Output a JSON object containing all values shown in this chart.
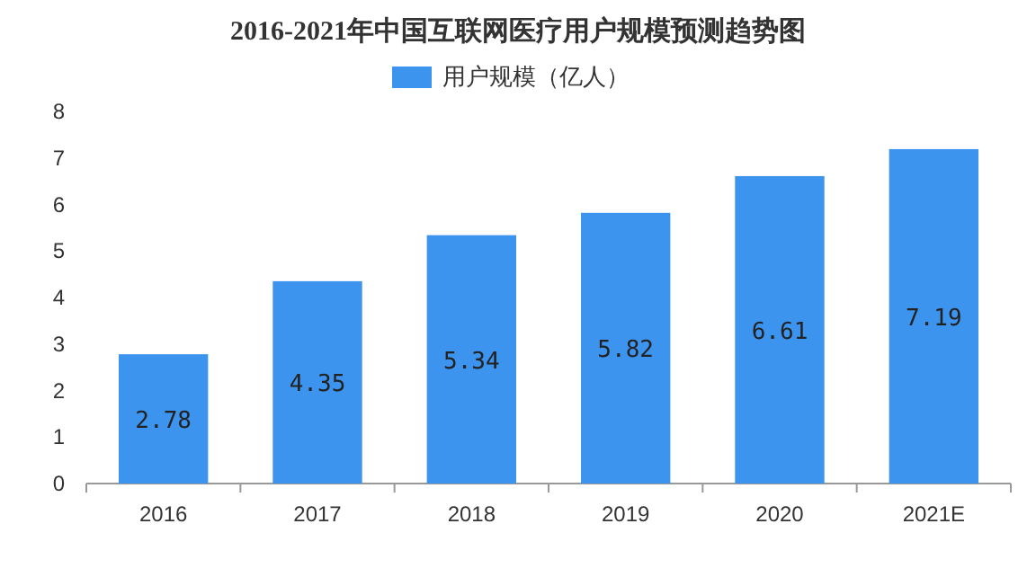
{
  "chart_data": {
    "type": "bar",
    "title": "2016-2021年中国互联网医疗用户规模预测趋势图",
    "categories": [
      "2016",
      "2017",
      "2018",
      "2019",
      "2020",
      "2021E"
    ],
    "series": [
      {
        "name": "用户规模（亿人）",
        "color": "#3d94ee",
        "values": [
          2.78,
          4.35,
          5.34,
          5.82,
          6.61,
          7.19
        ]
      }
    ],
    "ylim": [
      0,
      8
    ],
    "yticks": [
      0,
      1,
      2,
      3,
      4,
      5,
      6,
      7,
      8
    ],
    "data_labels": true,
    "legend": "top"
  }
}
